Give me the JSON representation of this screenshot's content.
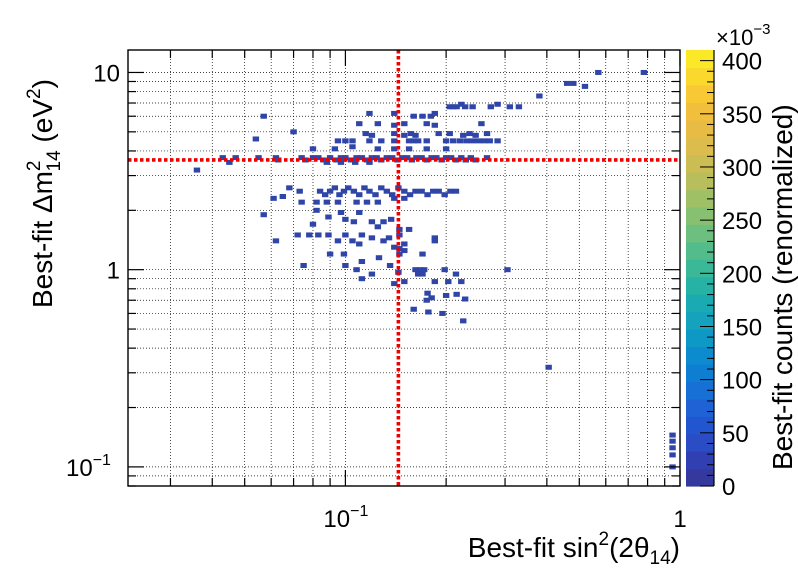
{
  "chart_data": {
    "type": "heatmap",
    "xlabel": {
      "prefix": "Best-fit sin",
      "sup": "2",
      "mid": "(2θ",
      "sub": "14",
      "suffix": ")"
    },
    "ylabel": {
      "prefix": "Best-fit Δm",
      "sup": "2",
      "sub": "14",
      "suffix": " (eV",
      "sup2": "2",
      "end": ")"
    },
    "zlabel": "Best-fit counts (renormalized)",
    "x_scale": "log",
    "y_scale": "log",
    "xlim": [
      0.0224,
      1.0
    ],
    "ylim": [
      0.08,
      13.0
    ],
    "x_ticks": [
      {
        "value": 0.1,
        "base": "10",
        "exp": "−1"
      },
      {
        "value": 1,
        "label": "1"
      }
    ],
    "y_ticks": [
      {
        "value": 0.1,
        "base": "10",
        "exp": "−1"
      },
      {
        "value": 1,
        "label": "1"
      },
      {
        "value": 10,
        "label": "10"
      }
    ],
    "grid": true,
    "best_fit_lines": {
      "x": 0.144,
      "y": 3.6,
      "color": "#ee0000"
    },
    "colorbar": {
      "zlim": [
        0,
        410
      ],
      "multiplier": "×10",
      "multiplier_exp": "−3",
      "tick_values": [
        0,
        50,
        100,
        150,
        200,
        250,
        300,
        350,
        400
      ],
      "tick_labels": [
        "0",
        "50",
        "100",
        "150",
        "200",
        "250",
        "300",
        "350",
        "400"
      ],
      "colors": [
        "#35399e",
        "#3040b2",
        "#2a4cc4",
        "#2256d0",
        "#1e62d6",
        "#1670d6",
        "#0e7ed2",
        "#0c8cce",
        "#0e98c6",
        "#14a2bc",
        "#1aaab2",
        "#26b2a4",
        "#3ab898",
        "#52bc8a",
        "#6cbf7e",
        "#86c070",
        "#a0c066",
        "#b8be5c",
        "#ccbc54",
        "#dcbc4c",
        "#e8bc44",
        "#f2bf3c",
        "#f8c934",
        "#fad82c",
        "#fbe826"
      ]
    },
    "bin_color": "#2f45a8",
    "points": [
      [
        0.036,
        3.2
      ],
      [
        0.043,
        3.7
      ],
      [
        0.045,
        3.5
      ],
      [
        0.047,
        3.7
      ],
      [
        0.054,
        4.6
      ],
      [
        0.057,
        6.0
      ],
      [
        0.055,
        3.7
      ],
      [
        0.062,
        3.7
      ],
      [
        0.063,
        3.6
      ],
      [
        0.07,
        5.0
      ],
      [
        0.074,
        3.7
      ],
      [
        0.076,
        3.6
      ],
      [
        0.08,
        3.7
      ],
      [
        0.083,
        3.7
      ],
      [
        0.086,
        3.6
      ],
      [
        0.09,
        3.7
      ],
      [
        0.094,
        3.6
      ],
      [
        0.097,
        3.7
      ],
      [
        0.1,
        3.7
      ],
      [
        0.104,
        3.6
      ],
      [
        0.108,
        3.7
      ],
      [
        0.112,
        3.7
      ],
      [
        0.116,
        3.6
      ],
      [
        0.12,
        3.7
      ],
      [
        0.124,
        3.7
      ],
      [
        0.128,
        3.6
      ],
      [
        0.133,
        3.7
      ],
      [
        0.138,
        3.7
      ],
      [
        0.143,
        3.6
      ],
      [
        0.148,
        3.7
      ],
      [
        0.153,
        3.7
      ],
      [
        0.158,
        3.6
      ],
      [
        0.163,
        3.7
      ],
      [
        0.169,
        3.7
      ],
      [
        0.175,
        3.6
      ],
      [
        0.181,
        3.7
      ],
      [
        0.187,
        3.7
      ],
      [
        0.194,
        3.6
      ],
      [
        0.2,
        3.7
      ],
      [
        0.207,
        3.7
      ],
      [
        0.214,
        3.6
      ],
      [
        0.222,
        3.7
      ],
      [
        0.229,
        3.6
      ],
      [
        0.237,
        3.7
      ],
      [
        0.245,
        3.6
      ],
      [
        0.265,
        3.7
      ],
      [
        0.088,
        3.5
      ],
      [
        0.097,
        3.5
      ],
      [
        0.107,
        3.5
      ],
      [
        0.118,
        3.5
      ],
      [
        0.08,
        4.1
      ],
      [
        0.093,
        4.1
      ],
      [
        0.105,
        4.2
      ],
      [
        0.125,
        4.1
      ],
      [
        0.14,
        4.1
      ],
      [
        0.155,
        4.1
      ],
      [
        0.175,
        4.1
      ],
      [
        0.2,
        4.1
      ],
      [
        0.095,
        4.5
      ],
      [
        0.1,
        4.5
      ],
      [
        0.105,
        4.5
      ],
      [
        0.118,
        4.5
      ],
      [
        0.128,
        4.5
      ],
      [
        0.14,
        4.5
      ],
      [
        0.155,
        4.5
      ],
      [
        0.16,
        4.5
      ],
      [
        0.165,
        4.5
      ],
      [
        0.175,
        4.5
      ],
      [
        0.2,
        4.5
      ],
      [
        0.21,
        4.5
      ],
      [
        0.22,
        4.5
      ],
      [
        0.23,
        4.5
      ],
      [
        0.24,
        4.5
      ],
      [
        0.25,
        4.5
      ],
      [
        0.26,
        4.5
      ],
      [
        0.27,
        4.5
      ],
      [
        0.285,
        4.5
      ],
      [
        0.115,
        4.9
      ],
      [
        0.12,
        4.8
      ],
      [
        0.14,
        4.9
      ],
      [
        0.15,
        4.8
      ],
      [
        0.157,
        4.9
      ],
      [
        0.162,
        4.8
      ],
      [
        0.19,
        4.9
      ],
      [
        0.205,
        4.9
      ],
      [
        0.225,
        4.8
      ],
      [
        0.235,
        4.9
      ],
      [
        0.245,
        4.8
      ],
      [
        0.265,
        4.9
      ],
      [
        0.11,
        5.5
      ],
      [
        0.125,
        5.5
      ],
      [
        0.14,
        5.4
      ],
      [
        0.15,
        5.5
      ],
      [
        0.175,
        5.5
      ],
      [
        0.185,
        5.4
      ],
      [
        0.255,
        5.5
      ],
      [
        0.118,
        6.2
      ],
      [
        0.14,
        6.2
      ],
      [
        0.16,
        6.0
      ],
      [
        0.17,
        6.0
      ],
      [
        0.18,
        6.0
      ],
      [
        0.185,
        6.2
      ],
      [
        0.205,
        6.7
      ],
      [
        0.21,
        6.7
      ],
      [
        0.215,
        6.7
      ],
      [
        0.222,
        6.9
      ],
      [
        0.228,
        6.7
      ],
      [
        0.24,
        6.7
      ],
      [
        0.272,
        6.7
      ],
      [
        0.285,
        6.9
      ],
      [
        0.31,
        6.7
      ],
      [
        0.33,
        6.7
      ],
      [
        0.38,
        7.6
      ],
      [
        0.46,
        8.8
      ],
      [
        0.48,
        8.8
      ],
      [
        0.52,
        8.5
      ],
      [
        0.57,
        10.0
      ],
      [
        0.78,
        10.0
      ],
      [
        0.068,
        2.6
      ],
      [
        0.073,
        2.5
      ],
      [
        0.084,
        2.5
      ],
      [
        0.087,
        2.4
      ],
      [
        0.09,
        2.5
      ],
      [
        0.093,
        2.6
      ],
      [
        0.096,
        2.4
      ],
      [
        0.099,
        2.5
      ],
      [
        0.102,
        2.6
      ],
      [
        0.106,
        2.5
      ],
      [
        0.11,
        2.4
      ],
      [
        0.114,
        2.6
      ],
      [
        0.118,
        2.5
      ],
      [
        0.123,
        2.4
      ],
      [
        0.128,
        2.6
      ],
      [
        0.133,
        2.5
      ],
      [
        0.138,
        2.4
      ],
      [
        0.144,
        2.6
      ],
      [
        0.15,
        2.5
      ],
      [
        0.156,
        2.4
      ],
      [
        0.162,
        2.5
      ],
      [
        0.169,
        2.5
      ],
      [
        0.176,
        2.4
      ],
      [
        0.183,
        2.5
      ],
      [
        0.19,
        2.5
      ],
      [
        0.198,
        2.4
      ],
      [
        0.206,
        2.5
      ],
      [
        0.214,
        2.5
      ],
      [
        0.061,
        2.3
      ],
      [
        0.065,
        2.35
      ],
      [
        0.074,
        2.2
      ],
      [
        0.082,
        2.2
      ],
      [
        0.088,
        2.2
      ],
      [
        0.095,
        2.2
      ],
      [
        0.108,
        2.2
      ],
      [
        0.116,
        2.2
      ],
      [
        0.125,
        2.2
      ],
      [
        0.14,
        2.3
      ],
      [
        0.15,
        2.3
      ],
      [
        0.057,
        1.9
      ],
      [
        0.082,
        2.0
      ],
      [
        0.089,
        1.85
      ],
      [
        0.097,
        1.95
      ],
      [
        0.11,
        1.95
      ],
      [
        0.1,
        1.8
      ],
      [
        0.106,
        1.75
      ],
      [
        0.12,
        1.75
      ],
      [
        0.13,
        1.75
      ],
      [
        0.137,
        1.8
      ],
      [
        0.08,
        1.7
      ],
      [
        0.125,
        1.65
      ],
      [
        0.145,
        1.6
      ],
      [
        0.155,
        1.6
      ],
      [
        0.1,
        1.5
      ],
      [
        0.072,
        1.5
      ],
      [
        0.078,
        1.5
      ],
      [
        0.083,
        1.5
      ],
      [
        0.089,
        1.5
      ],
      [
        0.112,
        1.5
      ],
      [
        0.12,
        1.45
      ],
      [
        0.13,
        1.4
      ],
      [
        0.135,
        1.45
      ],
      [
        0.145,
        1.5
      ],
      [
        0.185,
        1.45
      ],
      [
        0.062,
        1.4
      ],
      [
        0.095,
        1.4
      ],
      [
        0.105,
        1.4
      ],
      [
        0.11,
        1.35
      ],
      [
        0.15,
        1.35
      ],
      [
        0.185,
        1.4
      ],
      [
        0.14,
        1.3
      ],
      [
        0.145,
        1.28
      ],
      [
        0.15,
        1.25
      ],
      [
        0.145,
        1.2
      ],
      [
        0.09,
        1.2
      ],
      [
        0.099,
        1.2
      ],
      [
        0.112,
        1.1
      ],
      [
        0.126,
        1.15
      ],
      [
        0.17,
        1.2
      ],
      [
        0.075,
        1.05
      ],
      [
        0.1,
        1.05
      ],
      [
        0.108,
        1.0
      ],
      [
        0.136,
        1.05
      ],
      [
        0.144,
        0.97
      ],
      [
        0.162,
        1.0
      ],
      [
        0.167,
        1.0
      ],
      [
        0.172,
        1.0
      ],
      [
        0.165,
        0.95
      ],
      [
        0.17,
        0.95
      ],
      [
        0.198,
        1.0
      ],
      [
        0.214,
        0.95
      ],
      [
        0.305,
        1.0
      ],
      [
        0.112,
        0.9
      ],
      [
        0.12,
        0.95
      ],
      [
        0.14,
        0.85
      ],
      [
        0.15,
        0.87
      ],
      [
        0.185,
        0.87
      ],
      [
        0.203,
        0.87
      ],
      [
        0.222,
        0.87
      ],
      [
        0.176,
        0.76
      ],
      [
        0.181,
        0.72
      ],
      [
        0.175,
        0.7
      ],
      [
        0.2,
        0.74
      ],
      [
        0.215,
        0.75
      ],
      [
        0.228,
        0.71
      ],
      [
        0.16,
        0.63
      ],
      [
        0.177,
        0.61
      ],
      [
        0.195,
        0.6
      ],
      [
        0.225,
        0.55
      ],
      [
        0.405,
        0.32
      ],
      [
        0.95,
        0.145
      ],
      [
        0.95,
        0.135
      ],
      [
        0.95,
        0.125
      ],
      [
        0.95,
        0.115
      ],
      [
        0.95,
        0.1
      ]
    ]
  }
}
